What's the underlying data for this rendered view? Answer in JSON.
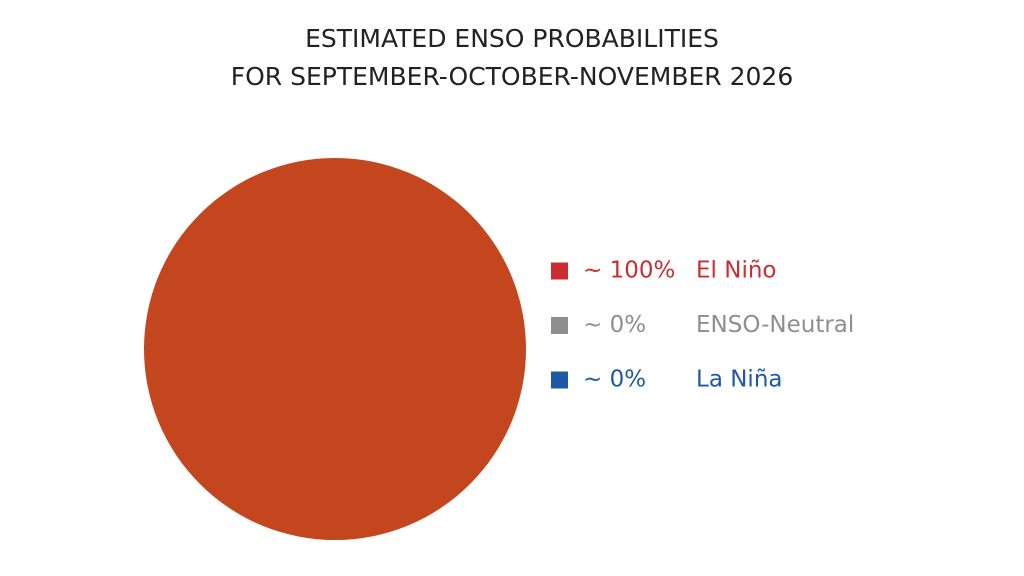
{
  "chart_data": {
    "type": "pie",
    "title": "ESTIMATED ENSO PROBABILITIES",
    "subtitle": "FOR SEPTEMBER-OCTOBER-NOVEMBER 2026",
    "categories": [
      "El Niño",
      "ENSO-Neutral",
      "La Niña"
    ],
    "values": [
      100,
      0,
      0
    ],
    "value_labels": [
      "~ 100%",
      "~ 0%",
      "~ 0%"
    ],
    "colors": [
      "#c4461e",
      "#a3a3a3",
      "#1f58a6"
    ],
    "label_colors": [
      "#cc2e30",
      "#8e8e8e",
      "#1f58a6"
    ],
    "legend": "right"
  }
}
